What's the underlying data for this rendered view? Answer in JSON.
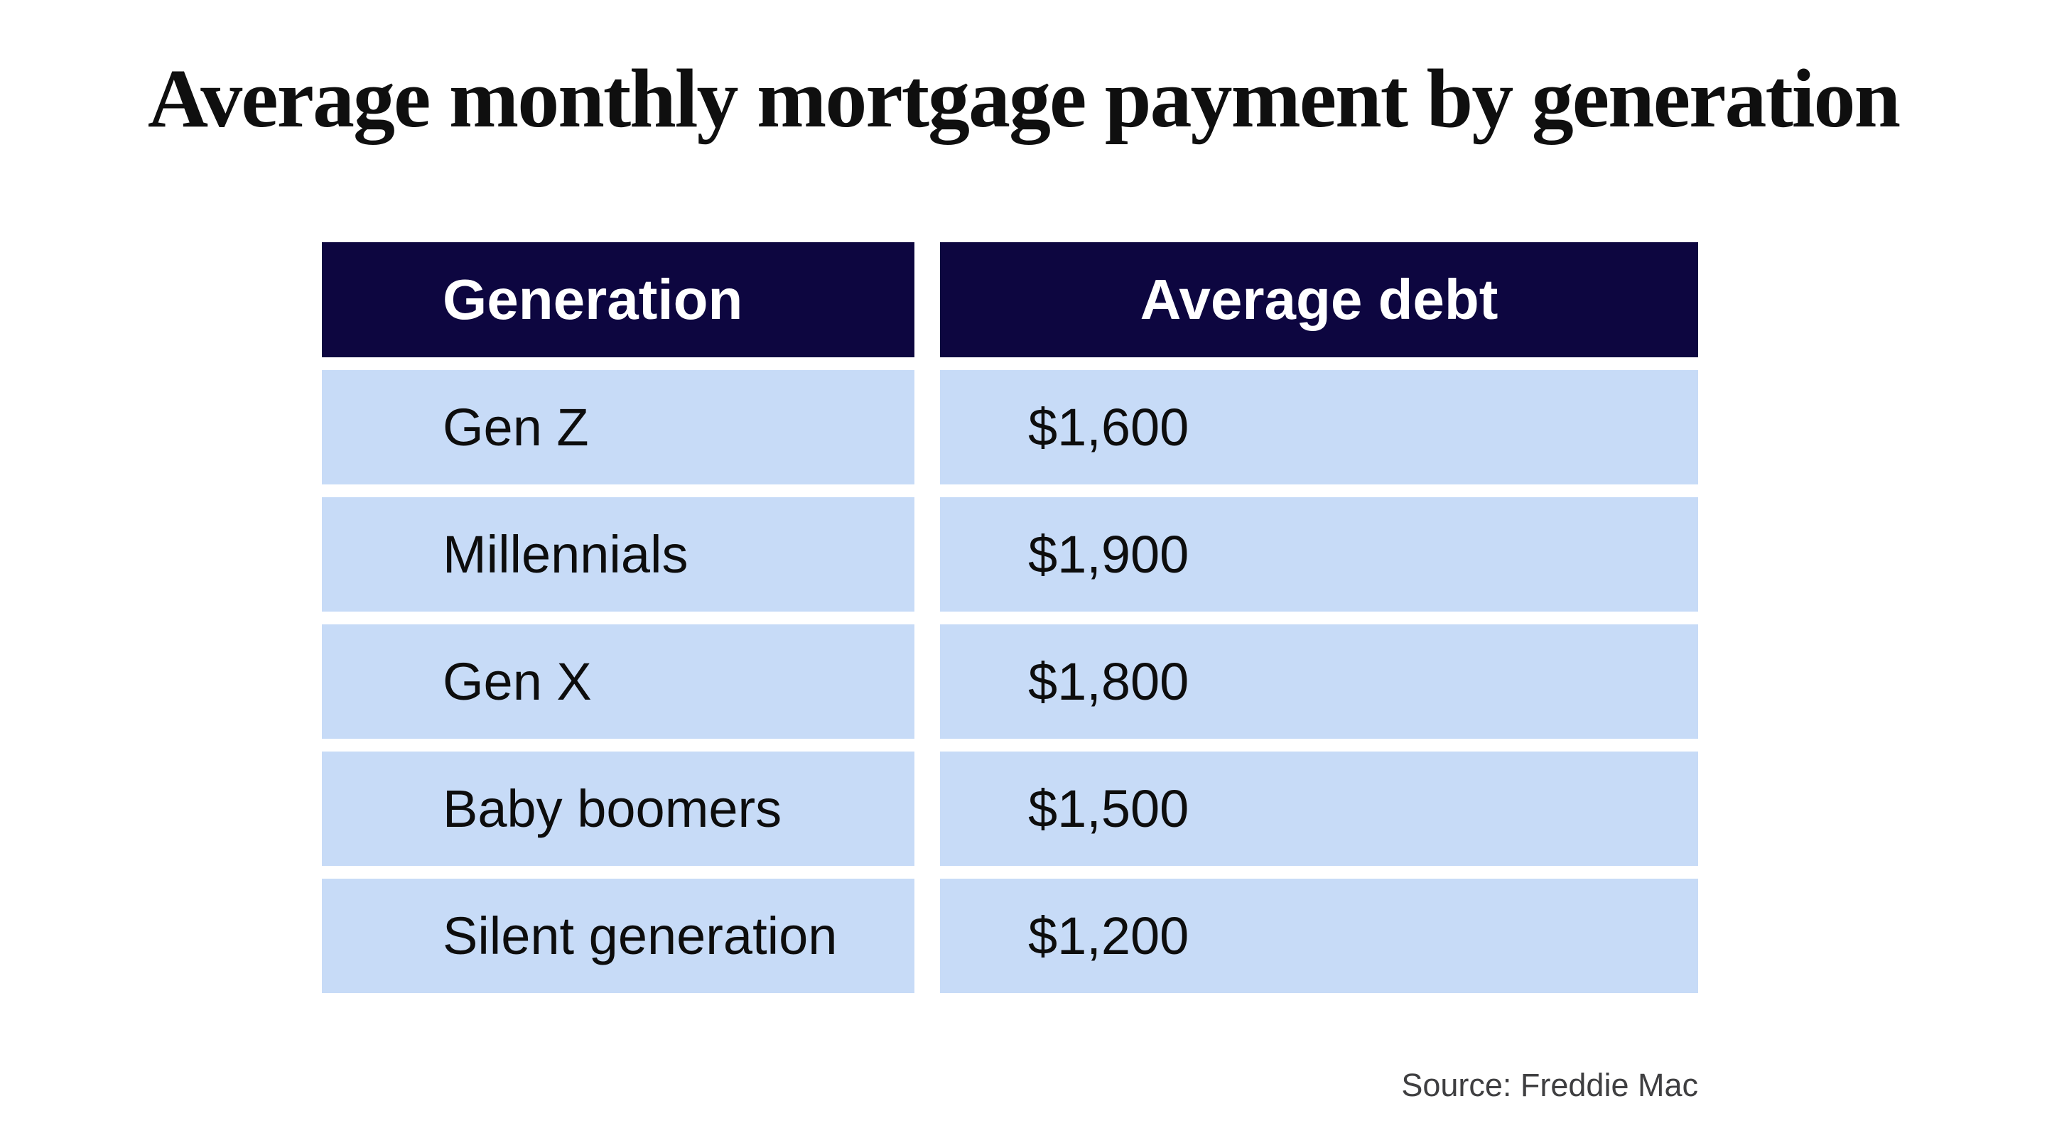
{
  "title": "Average monthly mortgage payment by generation",
  "table": {
    "headers": [
      "Generation",
      "Average debt"
    ],
    "rows": [
      [
        "Gen Z",
        "$1,600"
      ],
      [
        "Millennials",
        "$1,900"
      ],
      [
        "Gen X",
        "$1,800"
      ],
      [
        "Baby boomers",
        "$1,500"
      ],
      [
        "Silent generation",
        "$1,200"
      ]
    ]
  },
  "source": "Source: Freddie Mac",
  "colors": {
    "header_bg": "#0d0640",
    "header_text": "#ffffff",
    "row_bg": "#c7dbf7",
    "cell_text": "#0d0d0d",
    "title_text": "#0f0f0f",
    "source_text": "#3f3f41",
    "page_bg": "#ffffff"
  },
  "chart_data": {
    "type": "table",
    "title": "Average monthly mortgage payment by generation",
    "columns": [
      "Generation",
      "Average debt"
    ],
    "categories": [
      "Gen Z",
      "Millennials",
      "Gen X",
      "Baby boomers",
      "Silent generation"
    ],
    "values": [
      1600,
      1900,
      1800,
      1500,
      1200
    ],
    "value_labels": [
      "$1,600",
      "$1,900",
      "$1,800",
      "$1,500",
      "$1,200"
    ],
    "source": "Source: Freddie Mac"
  }
}
